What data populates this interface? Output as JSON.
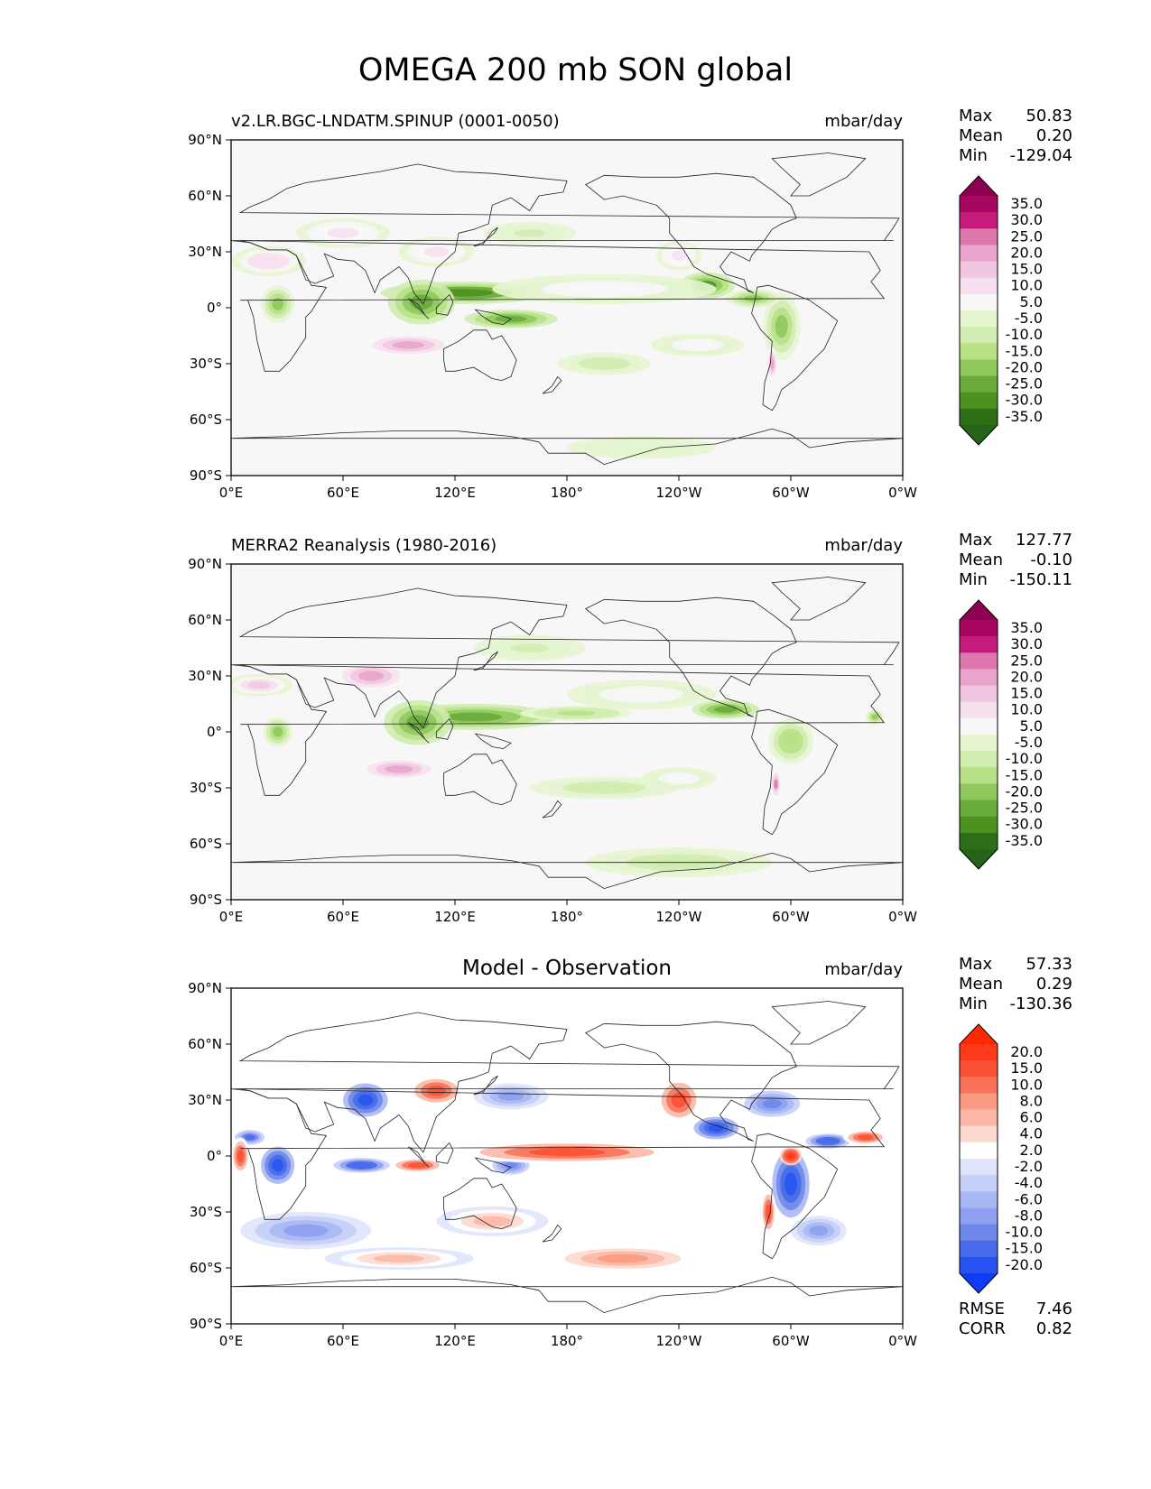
{
  "figure": {
    "suptitle": "OMEGA 200 mb SON global",
    "lon_ticks": [
      "0°E",
      "60°E",
      "120°E",
      "180°",
      "120°W",
      "60°W",
      "0°W"
    ],
    "lat_ticks": [
      "90°N",
      "60°N",
      "30°N",
      "0°",
      "30°S",
      "60°S",
      "90°S"
    ]
  },
  "panels": [
    {
      "title_left": "v2.LR.BGC-LNDATM.SPINUP (0001-0050)",
      "title_center": "",
      "units": "mbar/day",
      "stats": [
        {
          "label": "Max",
          "value": "50.83"
        },
        {
          "label": "Mean",
          "value": "0.20"
        },
        {
          "label": "Min",
          "value": "-129.04"
        }
      ],
      "metrics": [],
      "colorbar": {
        "labels": [
          "35.0",
          "30.0",
          "25.0",
          "20.0",
          "15.0",
          "10.0",
          "5.0",
          "-5.0",
          "-10.0",
          "-15.0",
          "-20.0",
          "-25.0",
          "-30.0",
          "-35.0"
        ],
        "colors": [
          "#8e0152",
          "#a8075f",
          "#c51b7d",
          "#de77ae",
          "#eaa4cc",
          "#f1c6e0",
          "#f7e0ee",
          "#f7f7f7",
          "#e6f5d0",
          "#d0ecb0",
          "#b8e186",
          "#8fc95e",
          "#6aaa3c",
          "#4d9221",
          "#2f6e17",
          "#276419"
        ]
      }
    },
    {
      "title_left": "MERRA2 Reanalysis (1980-2016)",
      "title_center": "",
      "units": "mbar/day",
      "stats": [
        {
          "label": "Max",
          "value": "127.77"
        },
        {
          "label": "Mean",
          "value": "-0.10"
        },
        {
          "label": "Min",
          "value": "-150.11"
        }
      ],
      "metrics": [],
      "colorbar": {
        "labels": [
          "35.0",
          "30.0",
          "25.0",
          "20.0",
          "15.0",
          "10.0",
          "5.0",
          "-5.0",
          "-10.0",
          "-15.0",
          "-20.0",
          "-25.0",
          "-30.0",
          "-35.0"
        ],
        "colors": [
          "#8e0152",
          "#a8075f",
          "#c51b7d",
          "#de77ae",
          "#eaa4cc",
          "#f1c6e0",
          "#f7e0ee",
          "#f7f7f7",
          "#e6f5d0",
          "#d0ecb0",
          "#b8e186",
          "#8fc95e",
          "#6aaa3c",
          "#4d9221",
          "#2f6e17",
          "#276419"
        ]
      }
    },
    {
      "title_left": "",
      "title_center": "Model - Observation",
      "units": "mbar/day",
      "stats": [
        {
          "label": "Max",
          "value": "57.33"
        },
        {
          "label": "Mean",
          "value": "0.29"
        },
        {
          "label": "Min",
          "value": "-130.36"
        }
      ],
      "metrics": [
        {
          "label": "RMSE",
          "value": "7.46"
        },
        {
          "label": "CORR",
          "value": "0.82"
        }
      ],
      "colorbar": {
        "labels": [
          "20.0",
          "15.0",
          "10.0",
          "8.0",
          "6.0",
          "4.0",
          "2.0",
          "-2.0",
          "-4.0",
          "-6.0",
          "-8.0",
          "-10.0",
          "-15.0",
          "-20.0"
        ],
        "colors": [
          "#ff2a00",
          "#ff3a1a",
          "#fa5035",
          "#f8735a",
          "#f99a82",
          "#fbb8a6",
          "#fdd8cc",
          "#ffffff",
          "#dfe4fb",
          "#c5cff7",
          "#a8b8f3",
          "#8ea0ef",
          "#6f87ea",
          "#476bea",
          "#2754f0",
          "#0f3cf6"
        ]
      }
    }
  ],
  "chart_data": [
    {
      "type": "heatmap",
      "title": "v2.LR.BGC-LNDATM.SPINUP (0001-0050)",
      "units": "mbar/day",
      "xlim": [
        0,
        360
      ],
      "ylim": [
        -90,
        90
      ],
      "levels": [
        -35,
        -30,
        -25,
        -20,
        -15,
        -10,
        -5,
        5,
        10,
        15,
        20,
        25,
        30,
        35
      ],
      "stats": {
        "max": 50.83,
        "mean": 0.2,
        "min": -129.04
      },
      "features": [
        {
          "lon": 125,
          "lat": 8,
          "value": -28,
          "rx": 45,
          "ry": 6
        },
        {
          "lon": 102,
          "lat": 3,
          "value": -25,
          "rx": 18,
          "ry": 12
        },
        {
          "lon": 150,
          "lat": -6,
          "value": -22,
          "rx": 25,
          "ry": 5
        },
        {
          "lon": 255,
          "lat": 12,
          "value": -26,
          "rx": 15,
          "ry": 7
        },
        {
          "lon": 295,
          "lat": -10,
          "value": -20,
          "rx": 10,
          "ry": 18
        },
        {
          "lon": 25,
          "lat": 2,
          "value": -20,
          "rx": 9,
          "ry": 10
        },
        {
          "lon": 280,
          "lat": 5,
          "value": -18,
          "rx": 15,
          "ry": 5
        },
        {
          "lon": 95,
          "lat": -20,
          "value": 22,
          "rx": 25,
          "ry": 6
        },
        {
          "lon": 20,
          "lat": 25,
          "value": 14,
          "rx": 20,
          "ry": 8
        },
        {
          "lon": 110,
          "lat": 30,
          "value": 12,
          "rx": 20,
          "ry": 8
        },
        {
          "lon": 60,
          "lat": 40,
          "value": 10,
          "rx": 25,
          "ry": 8
        },
        {
          "lon": 240,
          "lat": 28,
          "value": 11,
          "rx": 12,
          "ry": 8
        },
        {
          "lon": 200,
          "lat": 10,
          "value": 8,
          "rx": 60,
          "ry": 8
        },
        {
          "lon": 290,
          "lat": -30,
          "value": 20,
          "rx": 3,
          "ry": 9
        },
        {
          "lon": 250,
          "lat": -20,
          "value": 9,
          "rx": 25,
          "ry": 6
        },
        {
          "lon": 160,
          "lat": 40,
          "value": -6,
          "rx": 25,
          "ry": 6
        },
        {
          "lon": 200,
          "lat": -30,
          "value": -7,
          "rx": 25,
          "ry": 6
        },
        {
          "lon": 220,
          "lat": -75,
          "value": -5,
          "rx": 40,
          "ry": 6
        }
      ]
    },
    {
      "type": "heatmap",
      "title": "MERRA2 Reanalysis (1980-2016)",
      "units": "mbar/day",
      "xlim": [
        0,
        360
      ],
      "ylim": [
        -90,
        90
      ],
      "levels": [
        -35,
        -30,
        -25,
        -20,
        -15,
        -10,
        -5,
        5,
        10,
        15,
        20,
        25,
        30,
        35
      ],
      "stats": {
        "max": 127.77,
        "mean": -0.1,
        "min": -150.11
      },
      "features": [
        {
          "lon": 130,
          "lat": 8,
          "value": -25,
          "rx": 45,
          "ry": 7
        },
        {
          "lon": 100,
          "lat": 5,
          "value": -22,
          "rx": 18,
          "ry": 12
        },
        {
          "lon": 185,
          "lat": 10,
          "value": -12,
          "rx": 30,
          "ry": 4
        },
        {
          "lon": 265,
          "lat": 12,
          "value": -22,
          "rx": 18,
          "ry": 5
        },
        {
          "lon": 300,
          "lat": -5,
          "value": -15,
          "rx": 12,
          "ry": 12
        },
        {
          "lon": 25,
          "lat": 0,
          "value": -18,
          "rx": 8,
          "ry": 8
        },
        {
          "lon": 345,
          "lat": 8,
          "value": -20,
          "rx": 5,
          "ry": 4
        },
        {
          "lon": 90,
          "lat": -20,
          "value": 20,
          "rx": 22,
          "ry": 6
        },
        {
          "lon": 75,
          "lat": 30,
          "value": 20,
          "rx": 20,
          "ry": 8
        },
        {
          "lon": 15,
          "lat": 25,
          "value": 15,
          "rx": 18,
          "ry": 6
        },
        {
          "lon": 292,
          "lat": -28,
          "value": 25,
          "rx": 3,
          "ry": 8
        },
        {
          "lon": 240,
          "lat": -25,
          "value": 9,
          "rx": 20,
          "ry": 6
        },
        {
          "lon": 220,
          "lat": 20,
          "value": 7,
          "rx": 40,
          "ry": 8
        },
        {
          "lon": 200,
          "lat": -30,
          "value": -8,
          "rx": 40,
          "ry": 6
        },
        {
          "lon": 240,
          "lat": -70,
          "value": -8,
          "rx": 50,
          "ry": 8
        },
        {
          "lon": 160,
          "lat": 45,
          "value": -6,
          "rx": 30,
          "ry": 7
        }
      ]
    },
    {
      "type": "heatmap",
      "title": "Model - Observation",
      "units": "mbar/day",
      "xlim": [
        0,
        360
      ],
      "ylim": [
        -90,
        90
      ],
      "levels": [
        -20,
        -15,
        -10,
        -8,
        -6,
        -4,
        -2,
        2,
        4,
        6,
        8,
        10,
        15,
        20
      ],
      "stats": {
        "max": 57.33,
        "mean": 0.29,
        "min": -130.36
      },
      "metrics": {
        "rmse": 7.46,
        "corr": 0.82
      },
      "features": [
        {
          "lon": 72,
          "lat": 30,
          "value": -20,
          "rx": 12,
          "ry": 9
        },
        {
          "lon": 25,
          "lat": -5,
          "value": -20,
          "rx": 9,
          "ry": 10
        },
        {
          "lon": 70,
          "lat": -5,
          "value": -15,
          "rx": 15,
          "ry": 4
        },
        {
          "lon": 10,
          "lat": 10,
          "value": -12,
          "rx": 8,
          "ry": 4
        },
        {
          "lon": 260,
          "lat": 15,
          "value": -20,
          "rx": 12,
          "ry": 6
        },
        {
          "lon": 300,
          "lat": -15,
          "value": -18,
          "rx": 10,
          "ry": 18
        },
        {
          "lon": 320,
          "lat": 8,
          "value": -15,
          "rx": 12,
          "ry": 4
        },
        {
          "lon": 150,
          "lat": -5,
          "value": -10,
          "rx": 10,
          "ry": 5
        },
        {
          "lon": 150,
          "lat": 32,
          "value": -8,
          "rx": 20,
          "ry": 7
        },
        {
          "lon": 290,
          "lat": 28,
          "value": -10,
          "rx": 15,
          "ry": 7
        },
        {
          "lon": 40,
          "lat": -40,
          "value": -8,
          "rx": 35,
          "ry": 10
        },
        {
          "lon": 315,
          "lat": -40,
          "value": -8,
          "rx": 15,
          "ry": 8
        },
        {
          "lon": 180,
          "lat": 2,
          "value": 15,
          "rx": 60,
          "ry": 6
        },
        {
          "lon": 110,
          "lat": 35,
          "value": 15,
          "rx": 15,
          "ry": 8
        },
        {
          "lon": 240,
          "lat": 30,
          "value": 15,
          "rx": 12,
          "ry": 12
        },
        {
          "lon": 300,
          "lat": 0,
          "value": 20,
          "rx": 6,
          "ry": 5
        },
        {
          "lon": 340,
          "lat": 10,
          "value": 15,
          "rx": 12,
          "ry": 4
        },
        {
          "lon": 5,
          "lat": 0,
          "value": 15,
          "rx": 5,
          "ry": 10
        },
        {
          "lon": 100,
          "lat": -5,
          "value": 15,
          "rx": 15,
          "ry": 4
        },
        {
          "lon": 288,
          "lat": -30,
          "value": 15,
          "rx": 4,
          "ry": 12
        },
        {
          "lon": 140,
          "lat": -35,
          "value": 6,
          "rx": 30,
          "ry": 8
        },
        {
          "lon": 210,
          "lat": -55,
          "value": 8,
          "rx": 40,
          "ry": 7
        },
        {
          "lon": 90,
          "lat": -55,
          "value": 6,
          "rx": 40,
          "ry": 6
        }
      ]
    }
  ]
}
